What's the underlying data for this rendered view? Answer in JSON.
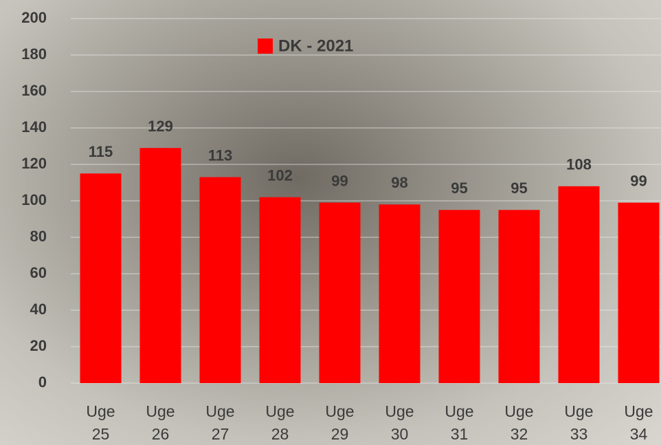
{
  "chart_data": {
    "type": "bar",
    "categories": [
      "Uge 25",
      "Uge 26",
      "Uge 27",
      "Uge 28",
      "Uge 29",
      "Uge 30",
      "Uge 31",
      "Uge 32",
      "Uge 33",
      "Uge 34"
    ],
    "series": [
      {
        "name": "DK - 2021",
        "color": "#ff0000",
        "values": [
          115,
          129,
          113,
          102,
          99,
          98,
          95,
          95,
          108,
          99
        ]
      }
    ],
    "ylim": [
      0,
      200
    ],
    "yticks": [
      0,
      20,
      40,
      60,
      80,
      100,
      120,
      140,
      160,
      180,
      200
    ],
    "grid": true
  }
}
